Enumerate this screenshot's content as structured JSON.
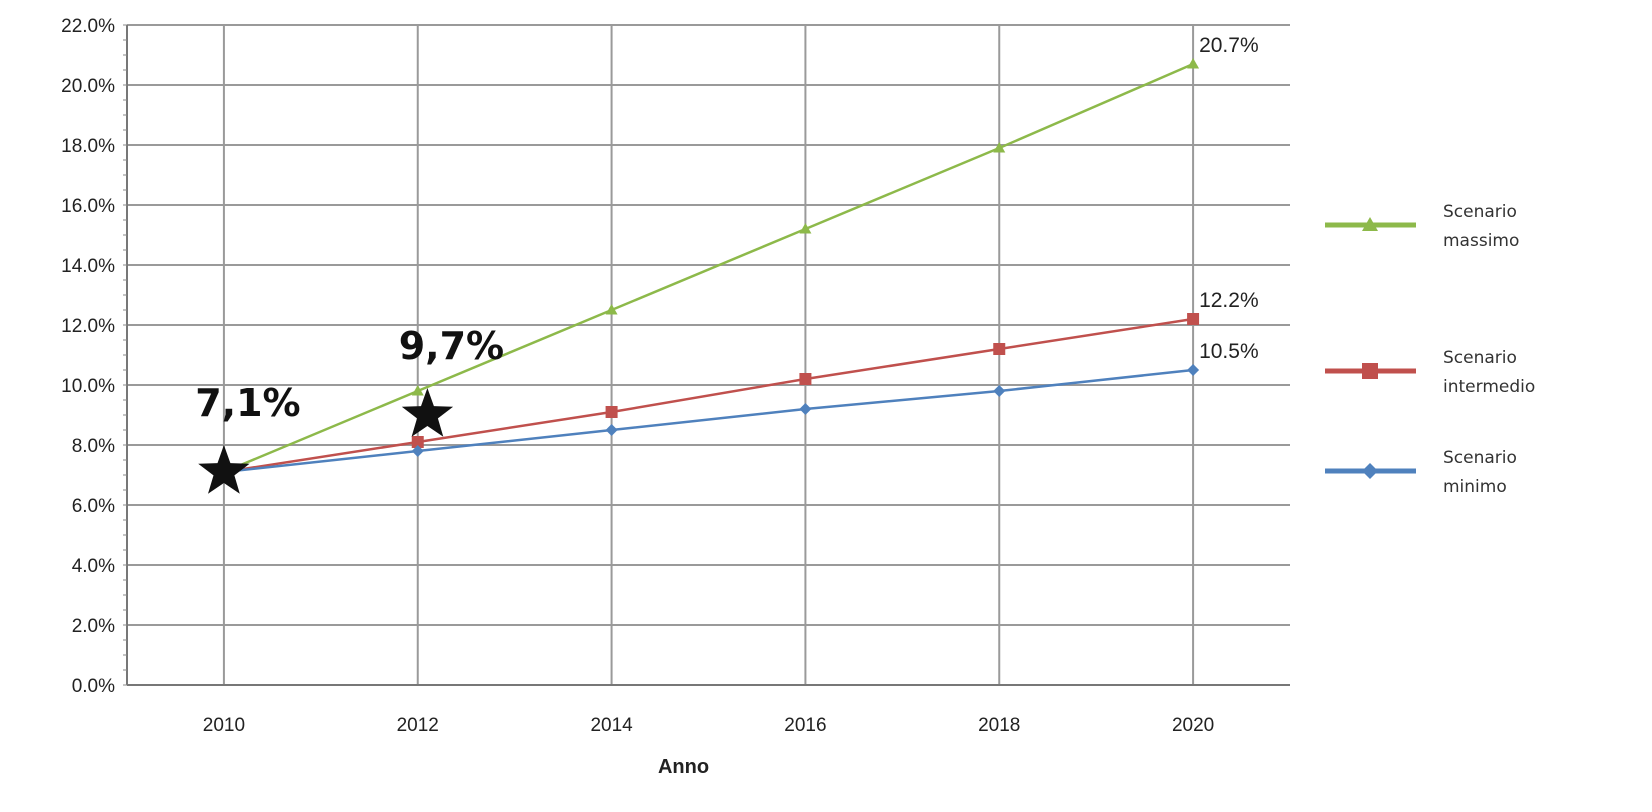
{
  "chart_data": {
    "type": "line",
    "xlabel": "Anno",
    "ylabel": "",
    "x": [
      2010,
      2012,
      2014,
      2016,
      2018,
      2020
    ],
    "xlim": [
      2009,
      2021
    ],
    "ylim": [
      0,
      22
    ],
    "y_unit": "%",
    "y_ticks": [
      0,
      2,
      4,
      6,
      8,
      10,
      12,
      14,
      16,
      18,
      20,
      22
    ],
    "y_tick_labels": [
      "0.0%",
      "2.0%",
      "4.0%",
      "6.0%",
      "8.0%",
      "10.0%",
      "12.0%",
      "14.0%",
      "16.0%",
      "18.0%",
      "20.0%",
      "22.0%"
    ],
    "x_tick_labels": [
      "2010",
      "2012",
      "2014",
      "2016",
      "2018",
      "2020"
    ],
    "grid": true,
    "legend_position": "right",
    "series": [
      {
        "name": "Scenario massimo",
        "legend_lines": [
          "Scenario",
          "massimo"
        ],
        "color": "#8db94a",
        "marker": "triangle",
        "values": [
          7.1,
          9.8,
          12.5,
          15.2,
          17.9,
          20.7
        ],
        "end_label": "20.7%"
      },
      {
        "name": "Scenario intermedio",
        "legend_lines": [
          "Scenario",
          "intermedio"
        ],
        "color": "#c0504d",
        "marker": "square",
        "values": [
          7.1,
          8.1,
          9.1,
          10.2,
          11.2,
          12.2
        ],
        "end_label": "12.2%"
      },
      {
        "name": "Scenario minimo",
        "legend_lines": [
          "Scenario",
          "minimo"
        ],
        "color": "#4f81bd",
        "marker": "diamond",
        "values": [
          7.1,
          7.8,
          8.5,
          9.2,
          9.8,
          10.5
        ],
        "end_label": "10.5%"
      }
    ],
    "annotations": [
      {
        "text": "7,1%",
        "x": 2010,
        "y": 7.1,
        "marker": "star"
      },
      {
        "text": "9,7%",
        "x": 2012.1,
        "y": 9.0,
        "marker": "star"
      }
    ]
  }
}
